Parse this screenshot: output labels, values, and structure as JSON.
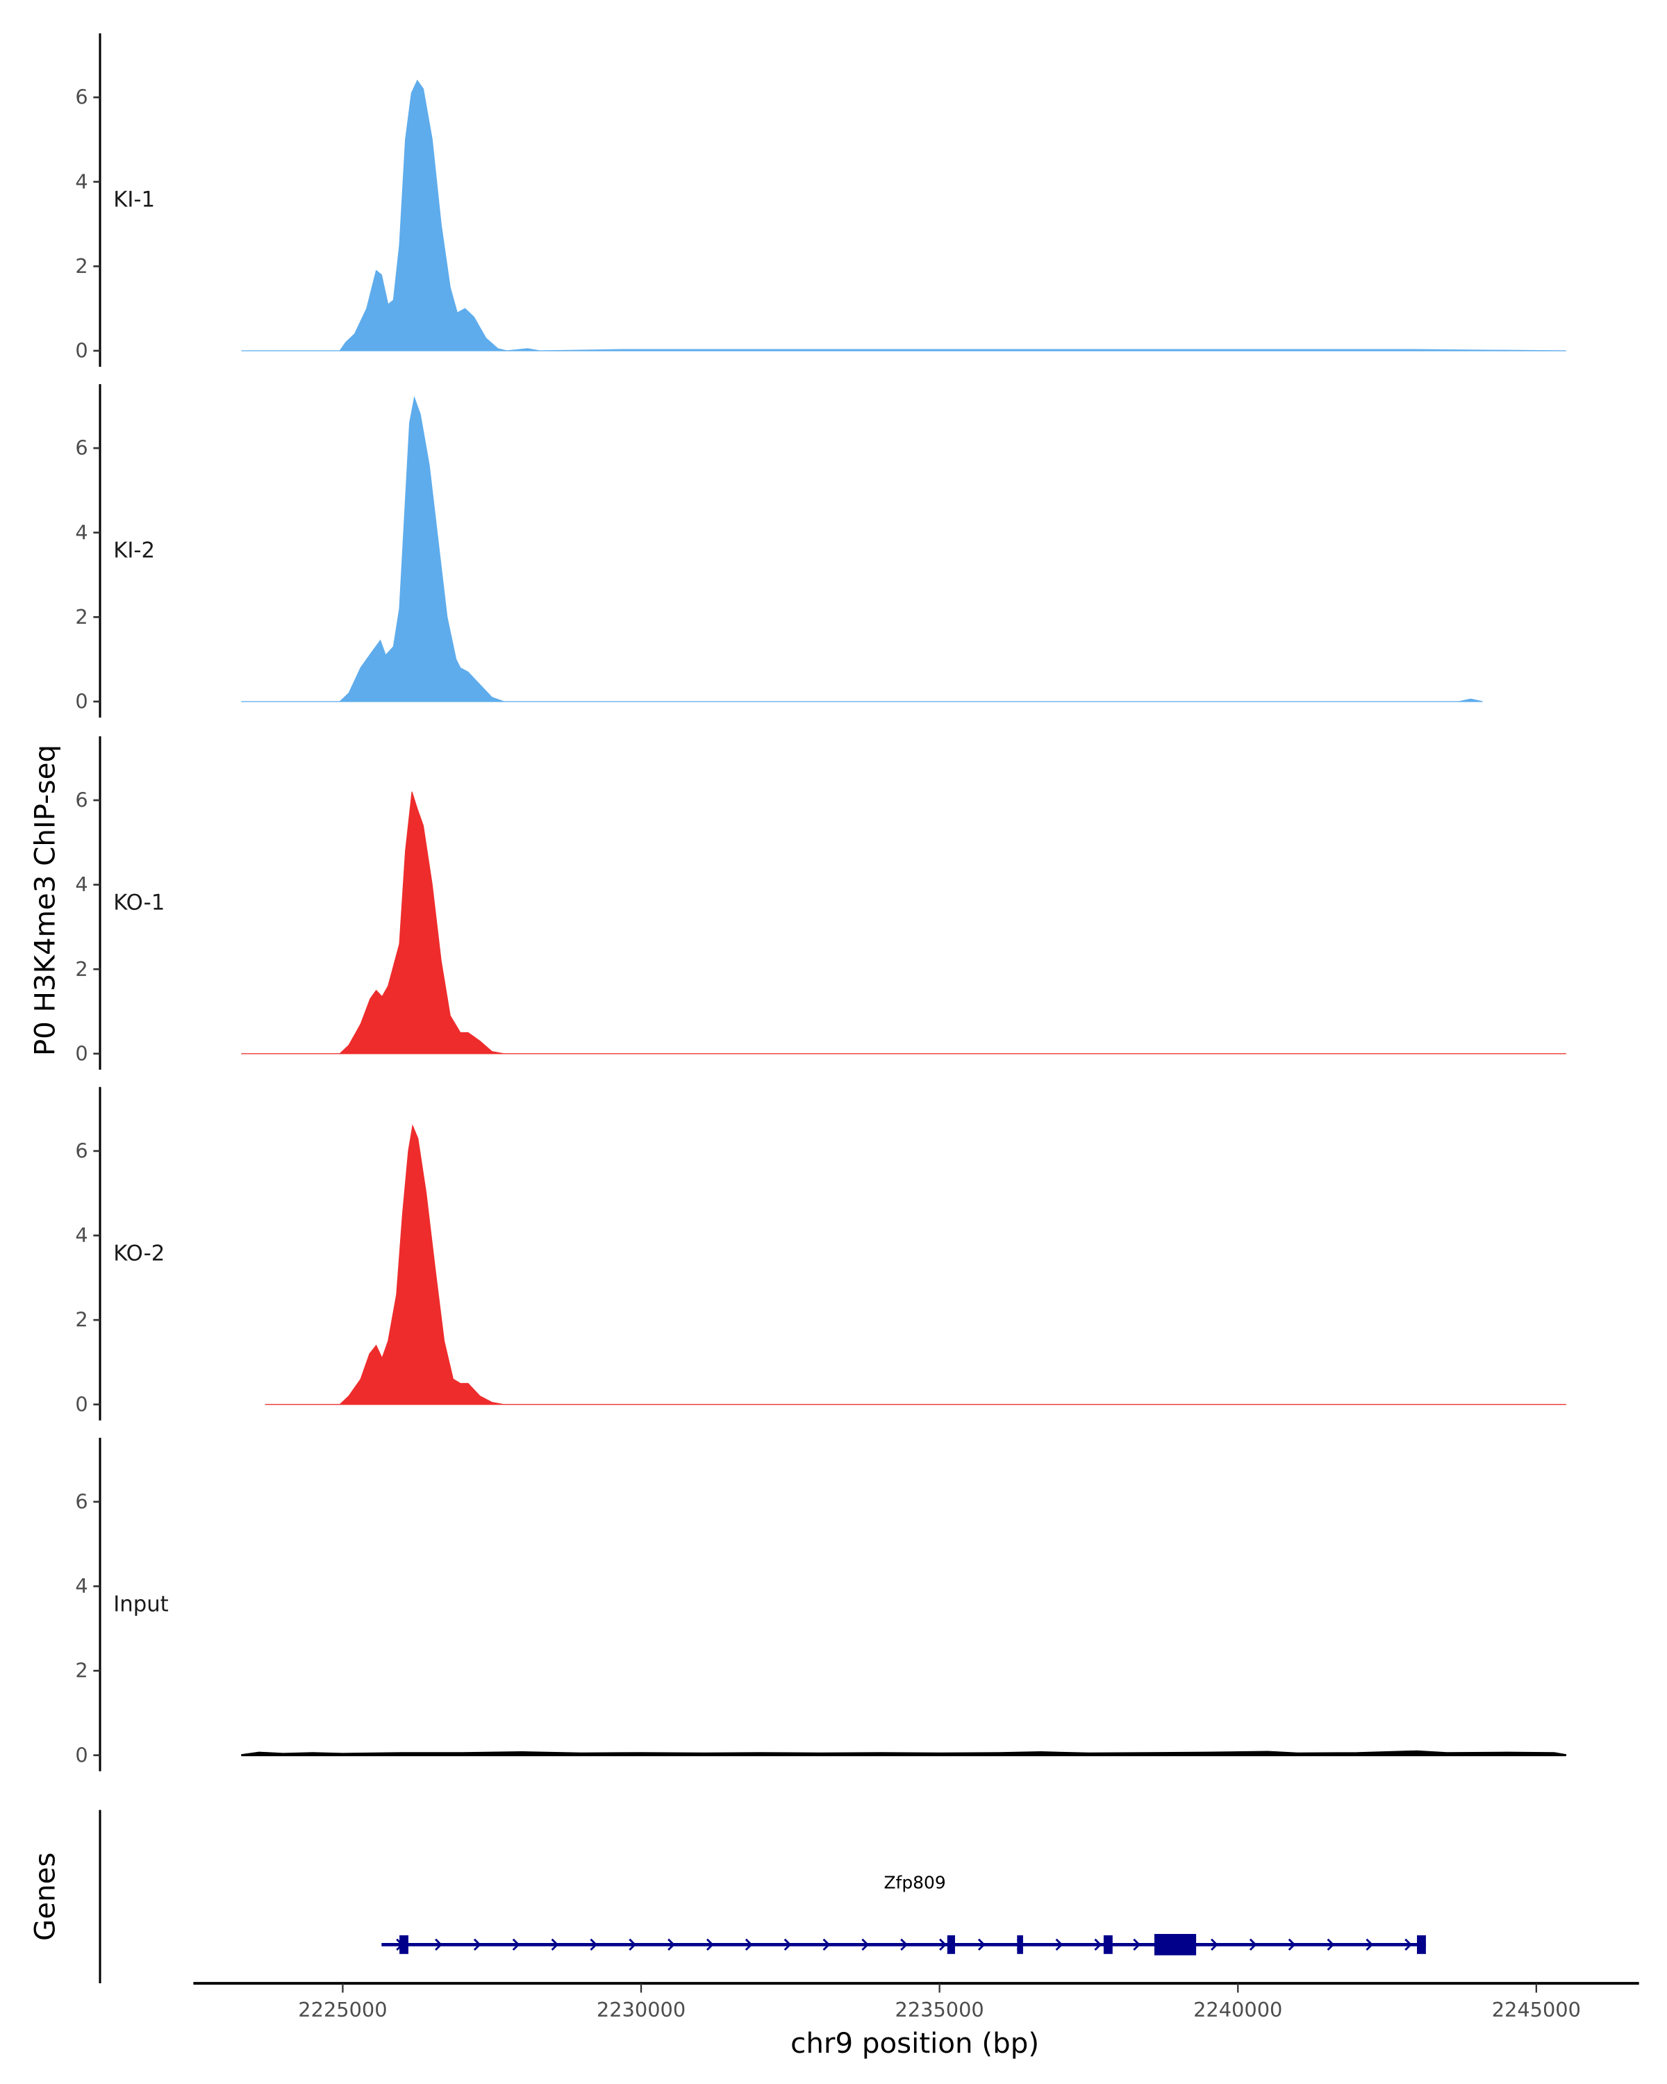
{
  "chart_data": {
    "type": "area",
    "ylabel": "P0 H3K4me3 ChIP-seq",
    "xlabel": "chr9 position (bp)",
    "xlim": [
      2222200,
      2246800
    ],
    "ylim": [
      0,
      7.5
    ],
    "yticks": [
      "0",
      "2",
      "4",
      "6"
    ],
    "xticks": [
      2225000,
      2230000,
      2235000,
      2240000,
      2245000
    ],
    "xtick_labels": [
      "2225000",
      "2230000",
      "2235000",
      "2240000",
      "2245000"
    ],
    "grid": false,
    "tracks": [
      {
        "name": "KI-1",
        "color": "#5eacec",
        "x": [
          2223300,
          2224950,
          2225050,
          2225200,
          2225400,
          2225560,
          2225650,
          2225760,
          2225850,
          2225950,
          2226050,
          2226150,
          2226250,
          2226350,
          2226500,
          2226650,
          2226800,
          2226920,
          2227050,
          2227200,
          2227400,
          2227600,
          2227750,
          2228100,
          2228300,
          2229700,
          2234500,
          2240500,
          2242900,
          2245500
        ],
        "y": [
          0,
          0,
          0.2,
          0.4,
          1.0,
          1.9,
          1.8,
          1.1,
          1.2,
          2.5,
          5.0,
          6.1,
          6.4,
          6.2,
          5.0,
          3.0,
          1.5,
          0.9,
          1.0,
          0.8,
          0.3,
          0.05,
          0,
          0.05,
          0,
          0.03,
          0.03,
          0.03,
          0.03,
          0
        ]
      },
      {
        "name": "KI-2",
        "color": "#5eacec",
        "x": [
          2223300,
          2224950,
          2225100,
          2225300,
          2225450,
          2225630,
          2225720,
          2225850,
          2225950,
          2226050,
          2226120,
          2226200,
          2226300,
          2226450,
          2226600,
          2226750,
          2226900,
          2226970,
          2227100,
          2227300,
          2227500,
          2227700,
          2243700,
          2243900,
          2244100
        ],
        "y": [
          0,
          0,
          0.2,
          0.8,
          1.1,
          1.45,
          1.1,
          1.3,
          2.2,
          4.8,
          6.6,
          7.2,
          6.8,
          5.6,
          3.8,
          2.0,
          1.0,
          0.8,
          0.7,
          0.4,
          0.1,
          0,
          0,
          0.06,
          0
        ],
        "end": 2244100
      },
      {
        "name": "KO-1",
        "color": "#ee2c2c",
        "x": [
          2223300,
          2224950,
          2225100,
          2225300,
          2225460,
          2225560,
          2225660,
          2225760,
          2225950,
          2226050,
          2226160,
          2226250,
          2226350,
          2226500,
          2226650,
          2226800,
          2226970,
          2227100,
          2227300,
          2227500,
          2227700,
          2245500
        ],
        "y": [
          0,
          0,
          0.2,
          0.7,
          1.3,
          1.5,
          1.35,
          1.6,
          2.6,
          4.8,
          6.2,
          5.8,
          5.4,
          4.0,
          2.2,
          0.9,
          0.5,
          0.5,
          0.3,
          0.05,
          0,
          0
        ]
      },
      {
        "name": "KO-2",
        "color": "#ee2c2c",
        "x": [
          2223700,
          2224950,
          2225100,
          2225300,
          2225450,
          2225560,
          2225660,
          2225760,
          2225900,
          2226000,
          2226100,
          2226170,
          2226260,
          2226400,
          2226550,
          2226700,
          2226850,
          2226970,
          2227100,
          2227300,
          2227500,
          2227700,
          2245500
        ],
        "y": [
          0,
          0,
          0.2,
          0.6,
          1.2,
          1.4,
          1.1,
          1.5,
          2.6,
          4.5,
          6.0,
          6.6,
          6.3,
          5.0,
          3.2,
          1.5,
          0.6,
          0.5,
          0.5,
          0.2,
          0.05,
          0,
          0
        ]
      },
      {
        "name": "Input",
        "color": "#000000",
        "x": [
          2223300,
          2223600,
          2224000,
          2224500,
          2225000,
          2226000,
          2227000,
          2228000,
          2229000,
          2230000,
          2231000,
          2232000,
          2233000,
          2234000,
          2235000,
          2236000,
          2236700,
          2237500,
          2238500,
          2239500,
          2240500,
          2241000,
          2242000,
          2243000,
          2243500,
          2244500,
          2245300,
          2245500
        ],
        "y": [
          0,
          0.06,
          0.03,
          0.05,
          0.03,
          0.05,
          0.05,
          0.07,
          0.04,
          0.05,
          0.04,
          0.05,
          0.04,
          0.05,
          0.04,
          0.05,
          0.07,
          0.04,
          0.05,
          0.06,
          0.08,
          0.04,
          0.05,
          0.09,
          0.05,
          0.06,
          0.05,
          0
        ]
      }
    ],
    "genes": {
      "label": "Genes",
      "color": "#00008b",
      "items": [
        {
          "name": "Zfp809",
          "strand": "+",
          "start": 2225650,
          "end": 2243150,
          "exons": [
            [
              2225950,
              2226100
            ],
            [
              2235130,
              2235260
            ],
            [
              2236300,
              2236400
            ],
            [
              2237750,
              2237900
            ],
            [
              2238600,
              2239300
            ],
            [
              2243000,
              2243150
            ]
          ]
        }
      ]
    }
  }
}
